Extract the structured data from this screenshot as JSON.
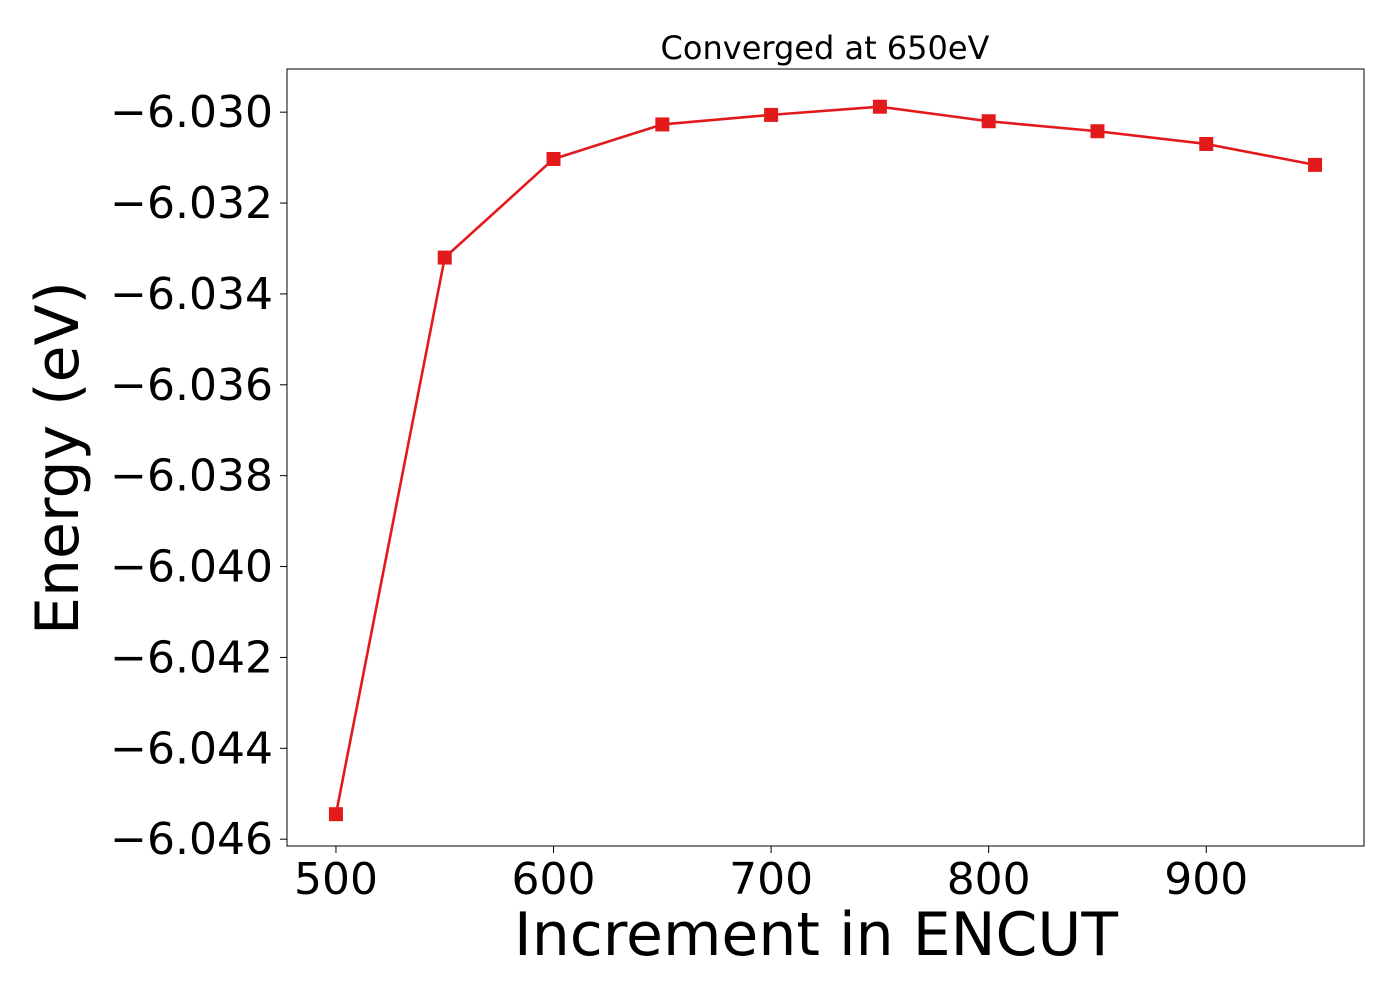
{
  "chart_data": {
    "type": "line",
    "title": "Converged at 650eV",
    "xlabel": "Increment in ENCUT",
    "ylabel": "Energy (eV)",
    "xlim": [
      477.5,
      972.5
    ],
    "ylim": [
      -6.04615,
      -6.02905
    ],
    "xticks": [
      500,
      600,
      700,
      800,
      900
    ],
    "xtick_labels": [
      "500",
      "600",
      "700",
      "800",
      "900"
    ],
    "yticks": [
      -6.046,
      -6.044,
      -6.042,
      -6.04,
      -6.038,
      -6.036,
      -6.034,
      -6.032,
      -6.03
    ],
    "ytick_labels": [
      "−6.046",
      "−6.044",
      "−6.042",
      "−6.040",
      "−6.038",
      "−6.036",
      "−6.034",
      "−6.032",
      "−6.030"
    ],
    "grid": false,
    "legend": "none",
    "series": [
      {
        "color": "#e31a1c",
        "marker": "square",
        "x": [
          500,
          550,
          600,
          650,
          700,
          750,
          800,
          850,
          900,
          950
        ],
        "y": [
          -6.04545,
          -6.0332,
          -6.03103,
          -6.03027,
          -6.03006,
          -6.02988,
          -6.0302,
          -6.03042,
          -6.0307,
          -6.03116
        ]
      }
    ]
  }
}
